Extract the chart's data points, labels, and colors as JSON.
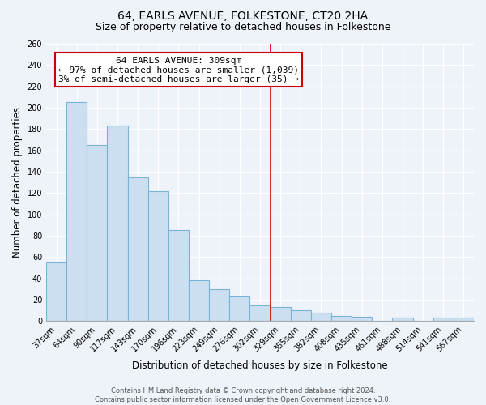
{
  "title": "64, EARLS AVENUE, FOLKESTONE, CT20 2HA",
  "subtitle": "Size of property relative to detached houses in Folkestone",
  "xlabel": "Distribution of detached houses by size in Folkestone",
  "ylabel": "Number of detached properties",
  "categories": [
    "37sqm",
    "64sqm",
    "90sqm",
    "117sqm",
    "143sqm",
    "170sqm",
    "196sqm",
    "223sqm",
    "249sqm",
    "276sqm",
    "302sqm",
    "329sqm",
    "355sqm",
    "382sqm",
    "408sqm",
    "435sqm",
    "461sqm",
    "488sqm",
    "514sqm",
    "541sqm",
    "567sqm"
  ],
  "values": [
    55,
    205,
    165,
    183,
    135,
    122,
    85,
    38,
    30,
    23,
    15,
    13,
    10,
    8,
    5,
    4,
    0,
    3,
    0,
    3,
    3
  ],
  "bar_color": "#ccdff0",
  "bar_edge_color": "#7ab3d9",
  "annotation_title": "64 EARLS AVENUE: 309sqm",
  "annotation_line1": "← 97% of detached houses are smaller (1,039)",
  "annotation_line2": "3% of semi-detached houses are larger (35) →",
  "annotation_box_color": "#ffffff",
  "annotation_box_edge_color": "#cc0000",
  "prop_line_color": "#cc0000",
  "ylim": [
    0,
    260
  ],
  "yticks": [
    0,
    20,
    40,
    60,
    80,
    100,
    120,
    140,
    160,
    180,
    200,
    220,
    240,
    260
  ],
  "footer_line1": "Contains HM Land Registry data © Crown copyright and database right 2024.",
  "footer_line2": "Contains public sector information licensed under the Open Government Licence v3.0.",
  "bg_color": "#eef2f9",
  "grid_color": "#ffffff",
  "title_fontsize": 10,
  "subtitle_fontsize": 9,
  "label_fontsize": 8.5,
  "tick_fontsize": 7,
  "footer_fontsize": 6,
  "annotation_fontsize": 8
}
